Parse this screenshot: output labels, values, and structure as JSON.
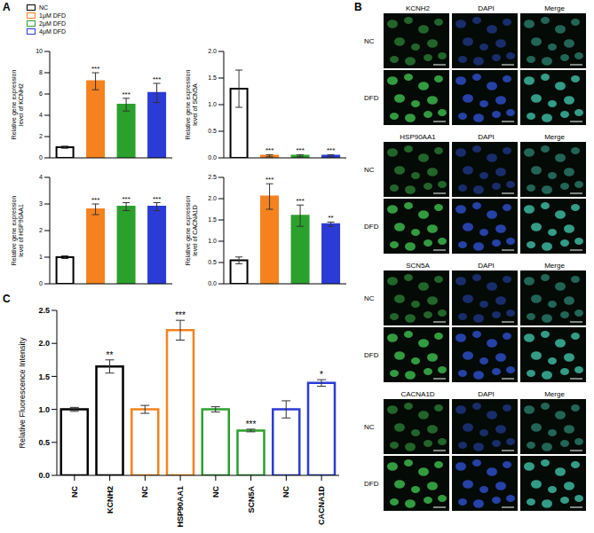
{
  "panel_labels": [
    "A",
    "B",
    "C"
  ],
  "chart_data": [
    {
      "type": "bar",
      "panel": "A",
      "y_label": "Relative gene expression level of KCNH2",
      "categories": [
        "NC",
        "1μM DFD",
        "2μM DFD",
        "4μM DFD"
      ],
      "values": [
        1.0,
        7.2,
        5.0,
        6.1
      ],
      "errors": [
        0.1,
        0.8,
        0.6,
        0.9
      ],
      "annotations": [
        null,
        "***",
        "***",
        "***"
      ],
      "colors": [
        "#000000",
        "#f5821f",
        "#2ca02c",
        "#2b3bd6"
      ],
      "ylim": [
        0,
        10
      ],
      "yticks": [
        0,
        2,
        4,
        6,
        8,
        10
      ],
      "tick_labels": "y",
      "legend": "top-left"
    },
    {
      "type": "bar",
      "y_label": "Relative gene expression level of SCN5A",
      "categories": [
        "NC",
        "1μM DFD",
        "2μM DFD",
        "4μM DFD"
      ],
      "values": [
        1.3,
        0.04,
        0.04,
        0.04
      ],
      "errors": [
        0.35,
        0.02,
        0.02,
        0.02
      ],
      "annotations": [
        null,
        "***",
        "***",
        "***"
      ],
      "colors": [
        "#000000",
        "#f5821f",
        "#2ca02c",
        "#2b3bd6"
      ],
      "ylim": [
        0,
        2
      ],
      "yticks": [
        {
          "value": 0,
          "label": "0.0"
        },
        {
          "value": 0.5,
          "label": "0.5"
        },
        {
          "value": 1,
          "label": "1.0"
        },
        {
          "value": 1.5,
          "label": "1.5"
        },
        {
          "value": 2,
          "label": "2.0"
        }
      ],
      "tick_labels": "y"
    },
    {
      "type": "bar",
      "y_label": "Relative gene expression level of HSP90AA1",
      "categories": [
        "NC",
        "1μM DFD",
        "2μM DFD",
        "4μM DFD"
      ],
      "values": [
        1.0,
        2.8,
        2.9,
        2.9
      ],
      "errors": [
        0.05,
        0.2,
        0.15,
        0.15
      ],
      "annotations": [
        null,
        "***",
        "***",
        "***"
      ],
      "colors": [
        "#000000",
        "#f5821f",
        "#2ca02c",
        "#2b3bd6"
      ],
      "ylim": [
        0,
        4
      ],
      "yticks": [
        0,
        1,
        2,
        3,
        4
      ],
      "tick_labels": "y"
    },
    {
      "type": "bar",
      "y_label": "Relative gene expression level of CACNA1D",
      "categories": [
        "NC",
        "1μM DFD",
        "2μM DFD",
        "4μM DFD"
      ],
      "values": [
        0.55,
        2.05,
        1.6,
        1.4
      ],
      "errors": [
        0.08,
        0.3,
        0.25,
        0.05
      ],
      "annotations": [
        null,
        "***",
        "***",
        "**"
      ],
      "colors": [
        "#000000",
        "#f5821f",
        "#2ca02c",
        "#2b3bd6"
      ],
      "ylim": [
        0,
        2.5
      ],
      "yticks": [
        {
          "value": 0,
          "label": "0.0"
        },
        {
          "value": 0.5,
          "label": "0.5"
        },
        {
          "value": 1,
          "label": "1.0"
        },
        {
          "value": 1.5,
          "label": "1.5"
        },
        {
          "value": 2,
          "label": "2.0"
        },
        {
          "value": 2.5,
          "label": "2.5"
        }
      ],
      "tick_labels": "y"
    },
    {
      "type": "bar",
      "panel": "C",
      "y_label": "Relative Fluorescence Intensity",
      "categories": [
        "NC",
        "KCNH2",
        "NC",
        "HSP90AA1",
        "NC",
        "SCN5A",
        "NC",
        "CACNA1D"
      ],
      "values": [
        1.0,
        1.65,
        1.0,
        2.2,
        1.0,
        0.68,
        1.0,
        1.4
      ],
      "errors": [
        0.03,
        0.1,
        0.06,
        0.15,
        0.04,
        0.02,
        0.13,
        0.05
      ],
      "annotations": [
        null,
        "**",
        null,
        "***",
        null,
        "***",
        null,
        "*"
      ],
      "colors": [
        "#000000",
        "#000000",
        "#f5821f",
        "#f5821f",
        "#2ca02c",
        "#2ca02c",
        "#2b3bd6",
        "#2b3bd6"
      ],
      "ylim": [
        0,
        2.5
      ],
      "yticks": [
        {
          "value": 0,
          "label": "0.0"
        },
        {
          "value": 0.5,
          "label": "0.5"
        },
        {
          "value": 1,
          "label": "1.0"
        },
        {
          "value": 1.5,
          "label": "1.5"
        },
        {
          "value": 2,
          "label": "2.0"
        },
        {
          "value": 2.5,
          "label": "2.5"
        }
      ]
    }
  ],
  "panel_B": {
    "groups": [
      {
        "columns": [
          "KCNH2",
          "DAPI",
          "Merge"
        ],
        "rows": [
          "NC",
          "DFD"
        ]
      },
      {
        "columns": [
          "HSP90AA1",
          "DAPI",
          "Merge"
        ],
        "rows": [
          "NC",
          "DFD"
        ]
      },
      {
        "columns": [
          "SCN5A",
          "DAPI",
          "Merge"
        ],
        "rows": [
          "NC",
          "DFD"
        ]
      },
      {
        "columns": [
          "CACNA1D",
          "DAPI",
          "Merge"
        ],
        "rows": [
          "NC",
          "DFD"
        ]
      }
    ]
  }
}
